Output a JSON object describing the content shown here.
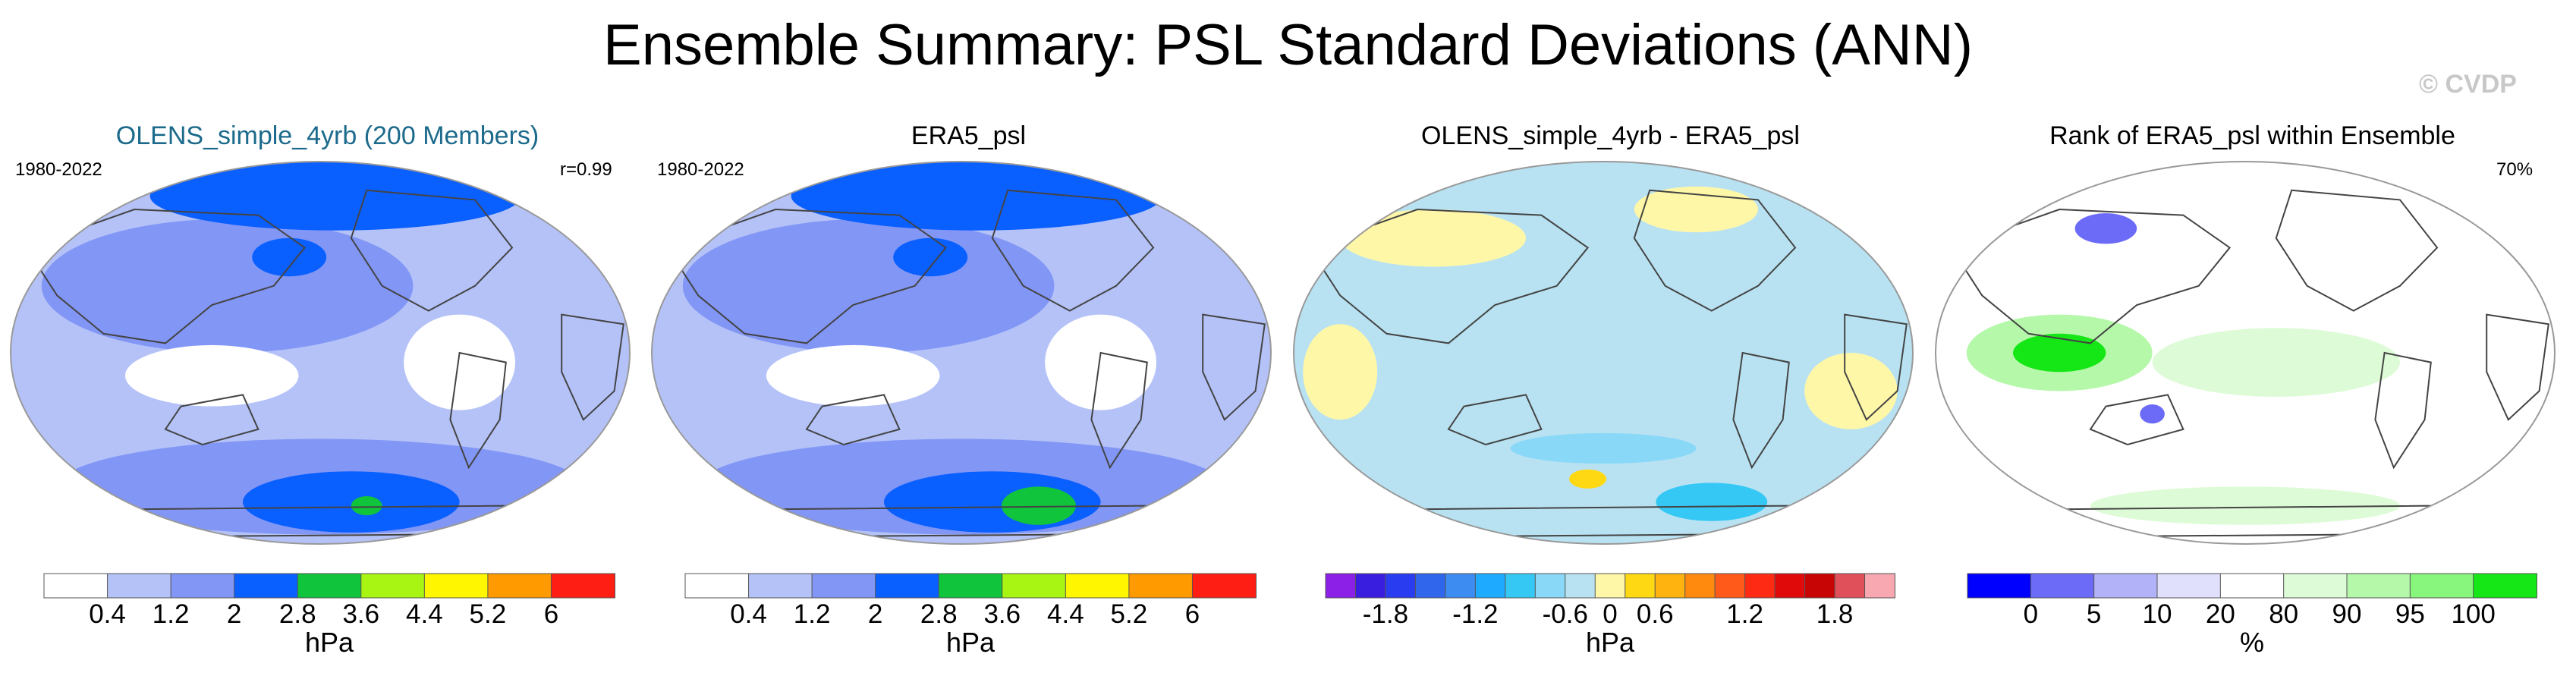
{
  "figure": {
    "title": "Ensemble Summary: PSL Standard Deviations (ANN)",
    "watermark": "© CVDP"
  },
  "colors": {
    "pos_scale": [
      "#ffffff",
      "#b4c2f8",
      "#8296f5",
      "#0a5fff",
      "#10c43c",
      "#a8f514",
      "#fff600",
      "#ff9b00",
      "#ff1e14"
    ],
    "diff_scale": [
      "#8c20e6",
      "#3a1ee0",
      "#2a3cf0",
      "#2f66ec",
      "#3d8cf2",
      "#1eaaff",
      "#36c8f5",
      "#8ad8f8",
      "#b8e2f2",
      "#fff7a8",
      "#ffd814",
      "#ffb30f",
      "#ff8a0d",
      "#ff5a1a",
      "#ff2a14",
      "#e10a0a",
      "#c80505",
      "#e0505a",
      "#f7a8b0"
    ],
    "rank_scale": [
      "#0000ff",
      "#6b6bf7",
      "#b2b2f9",
      "#e0e0fc",
      "#ffffff",
      "#defbd7",
      "#b5f8aa",
      "#88f57c",
      "#15e615"
    ]
  },
  "chart_data": [
    {
      "type": "heatmap",
      "title": "OLENS_simple_4yrb (200 Members)",
      "left_label": "1980-2022",
      "right_label": "r=0.99",
      "colorbar": {
        "ticks": [
          "0.4",
          "1.2",
          "2",
          "2.8",
          "3.6",
          "4.4",
          "5.2",
          "6"
        ],
        "unit": "hPa"
      }
    },
    {
      "type": "heatmap",
      "title": "ERA5_psl",
      "left_label": "1980-2022",
      "colorbar": {
        "ticks": [
          "0.4",
          "1.2",
          "2",
          "2.8",
          "3.6",
          "4.4",
          "5.2",
          "6"
        ],
        "unit": "hPa"
      }
    },
    {
      "type": "heatmap",
      "title": "OLENS_simple_4yrb - ERA5_psl",
      "colorbar": {
        "ticks": [
          "-1.8",
          "-1.2",
          "-0.6",
          "0",
          "0.6",
          "1.2",
          "1.8"
        ],
        "unit": "hPa"
      }
    },
    {
      "type": "heatmap",
      "title": "Rank of ERA5_psl within Ensemble",
      "right_label": "70%",
      "colorbar": {
        "ticks": [
          "0",
          "5",
          "10",
          "20",
          "80",
          "90",
          "95",
          "100"
        ],
        "unit": "%"
      }
    }
  ]
}
